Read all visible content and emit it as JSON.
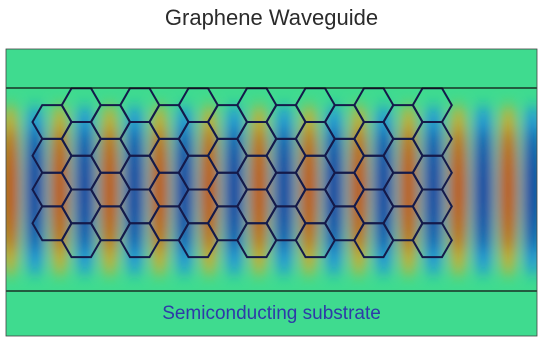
{
  "figure": {
    "title": "Graphene Waveguide",
    "substrate_label": "Semiconducting substrate"
  },
  "colors": {
    "background_field": "#3fdb8f",
    "field_positive": "#b40000",
    "field_negative": "#00007a",
    "hexagon_stroke": "#141a4a",
    "boundary_line": "#111111",
    "label_color": "#2e3aa8"
  },
  "field_pattern": {
    "description_type": "standing-wave",
    "antinode_sequence": [
      "red",
      "blue",
      "red",
      "blue",
      "red",
      "blue",
      "red",
      "blue",
      "red",
      "blue",
      "red",
      "blue",
      "red",
      "blue",
      "red",
      "blue",
      "red",
      "blue",
      "red",
      "blue",
      "red",
      "blue"
    ]
  },
  "lattice": {
    "type": "hexagonal",
    "columns": 14,
    "rows": 4
  }
}
